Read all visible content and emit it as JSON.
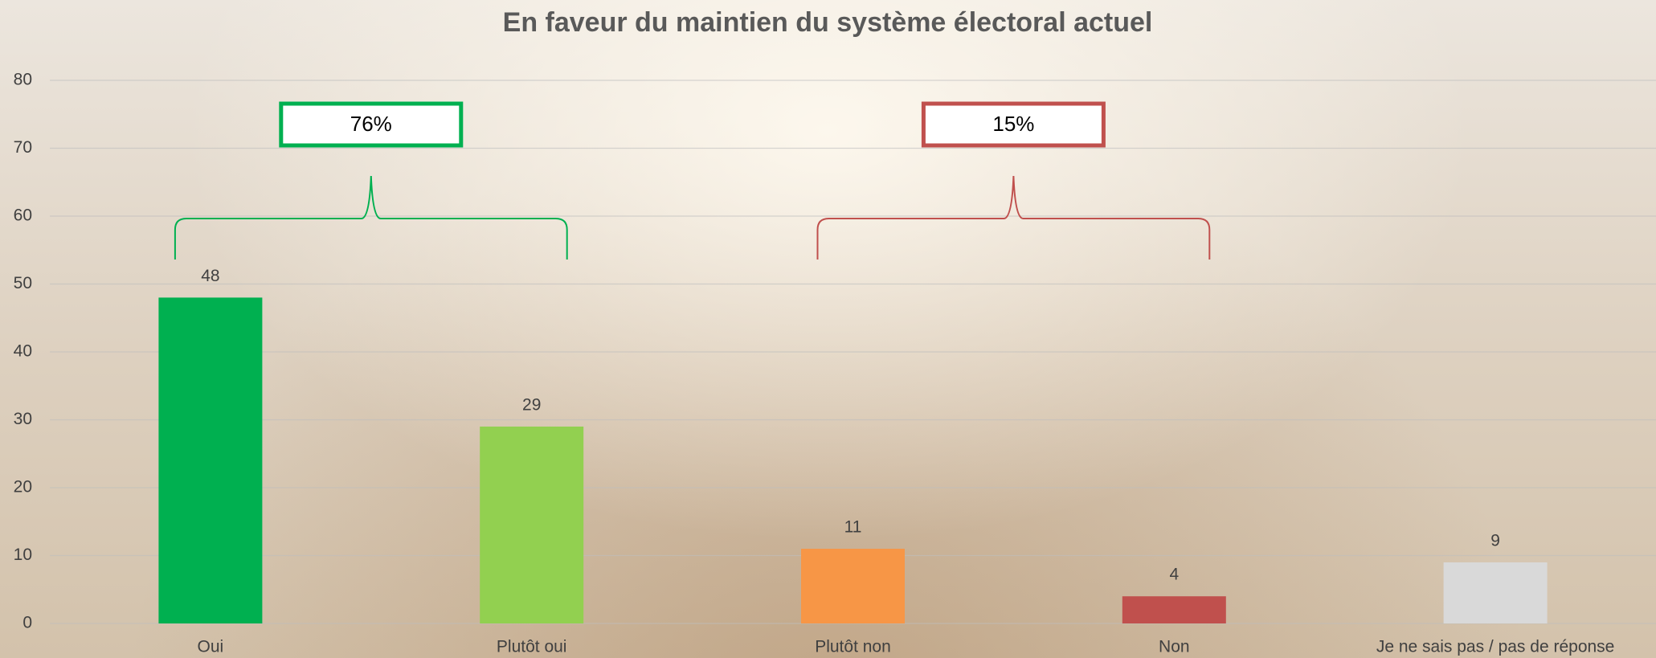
{
  "chart_data": {
    "type": "bar",
    "title": "En faveur du maintien du système électoral actuel",
    "categories": [
      "Oui",
      "Plutôt oui",
      "Plutôt non",
      "Non",
      "Je ne sais pas  / pas de réponse"
    ],
    "values": [
      48,
      29,
      11,
      4,
      9
    ],
    "colors": [
      "#00b050",
      "#92d050",
      "#f79646",
      "#c0504d",
      "#d9d9d9"
    ],
    "ylim": [
      0,
      80
    ],
    "yticks": [
      0,
      10,
      20,
      30,
      40,
      50,
      60,
      70,
      80
    ],
    "grid": true,
    "annotations": [
      {
        "text": "76%",
        "color": "#00b050"
      },
      {
        "text": "15%",
        "color": "#c0504d"
      }
    ]
  }
}
